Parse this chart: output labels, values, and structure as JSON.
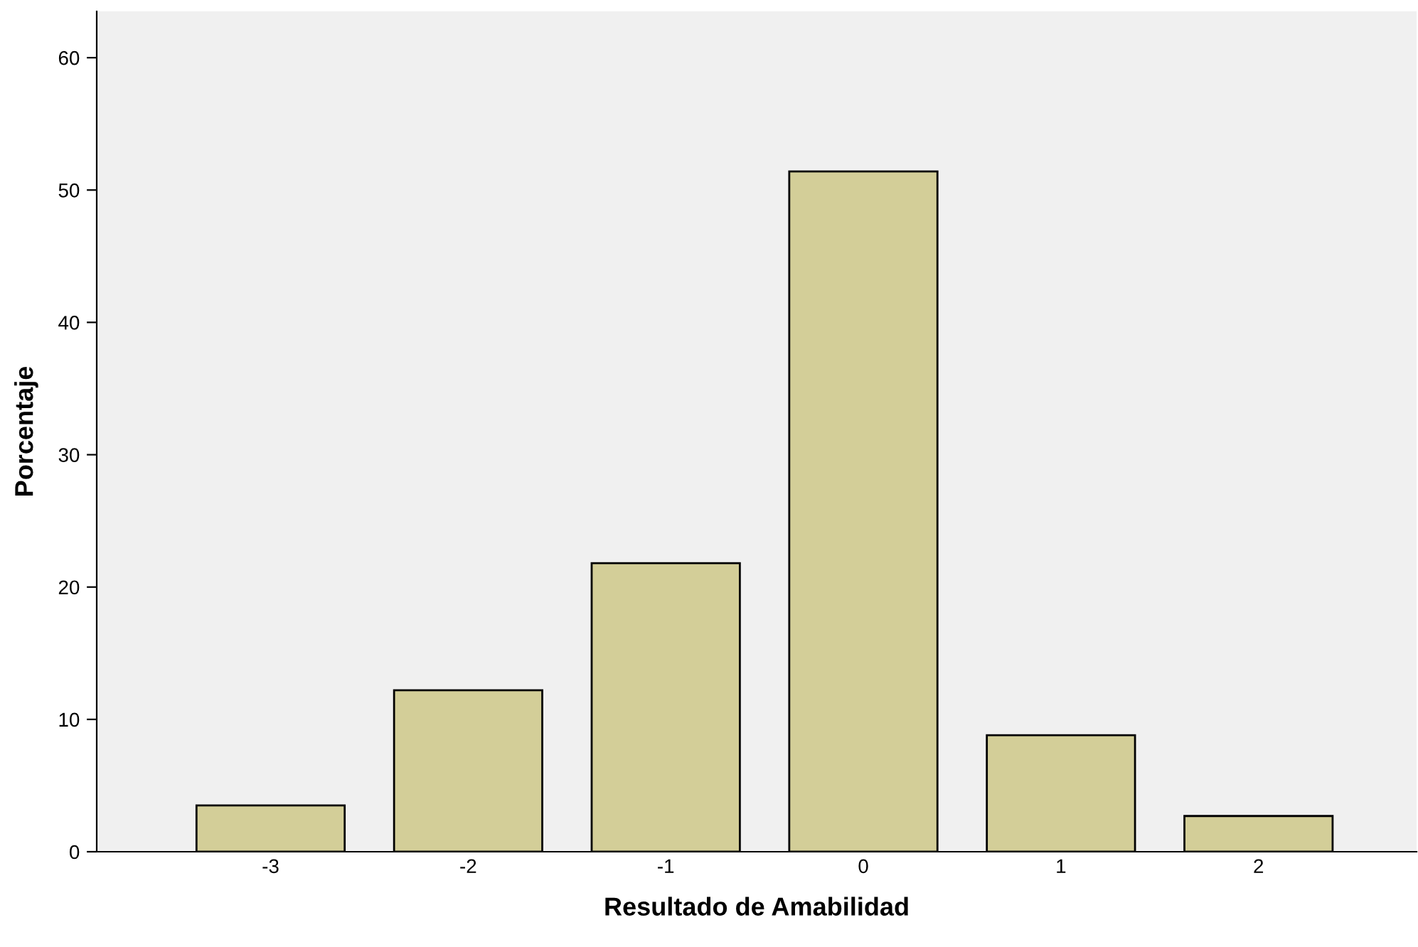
{
  "chart_data": {
    "type": "bar",
    "xlabel": "Resultado de Amabilidad",
    "ylabel": "Porcentaje",
    "categories": [
      "-3",
      "-2",
      "-1",
      "0",
      "1",
      "2"
    ],
    "values": [
      3.5,
      12.2,
      21.8,
      51.4,
      8.8,
      2.7
    ],
    "color": "#d3ce98",
    "ylim": [
      0,
      63.5
    ],
    "yticks": [
      0,
      10,
      20,
      30,
      40,
      50,
      60
    ],
    "grid": false,
    "legend": false
  }
}
